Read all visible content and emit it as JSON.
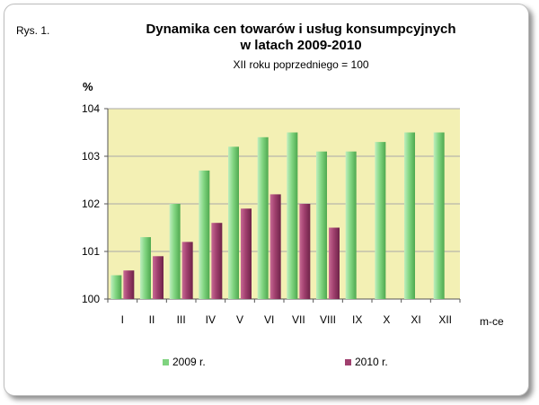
{
  "figure_label": "Rys. 1.",
  "chart_data": {
    "type": "bar",
    "title_line1": "Dynamika cen towarów i usług konsumpcyjnych",
    "title_line2": "w latach 2009-2010",
    "subtitle": "XII roku poprzedniego = 100",
    "ylabel": "%",
    "xlabel": "m-ce",
    "ylim": [
      100,
      104
    ],
    "yticks": [
      100,
      101,
      102,
      103,
      104
    ],
    "grid": true,
    "legend_position": "bottom",
    "categories": [
      "I",
      "II",
      "III",
      "IV",
      "V",
      "VI",
      "VII",
      "VIII",
      "IX",
      "X",
      "XI",
      "XII"
    ],
    "series": [
      {
        "name": "2009 r.",
        "color": "#7fd37f",
        "values": [
          100.5,
          101.3,
          102.0,
          102.7,
          103.2,
          103.4,
          103.5,
          103.1,
          103.1,
          103.3,
          103.5,
          103.5
        ]
      },
      {
        "name": "2010 r.",
        "color": "#a0406e",
        "values": [
          100.6,
          100.9,
          101.2,
          101.6,
          101.9,
          102.2,
          102.0,
          101.5,
          null,
          null,
          null,
          null
        ]
      }
    ],
    "plot_background": "#f3f0b4"
  }
}
